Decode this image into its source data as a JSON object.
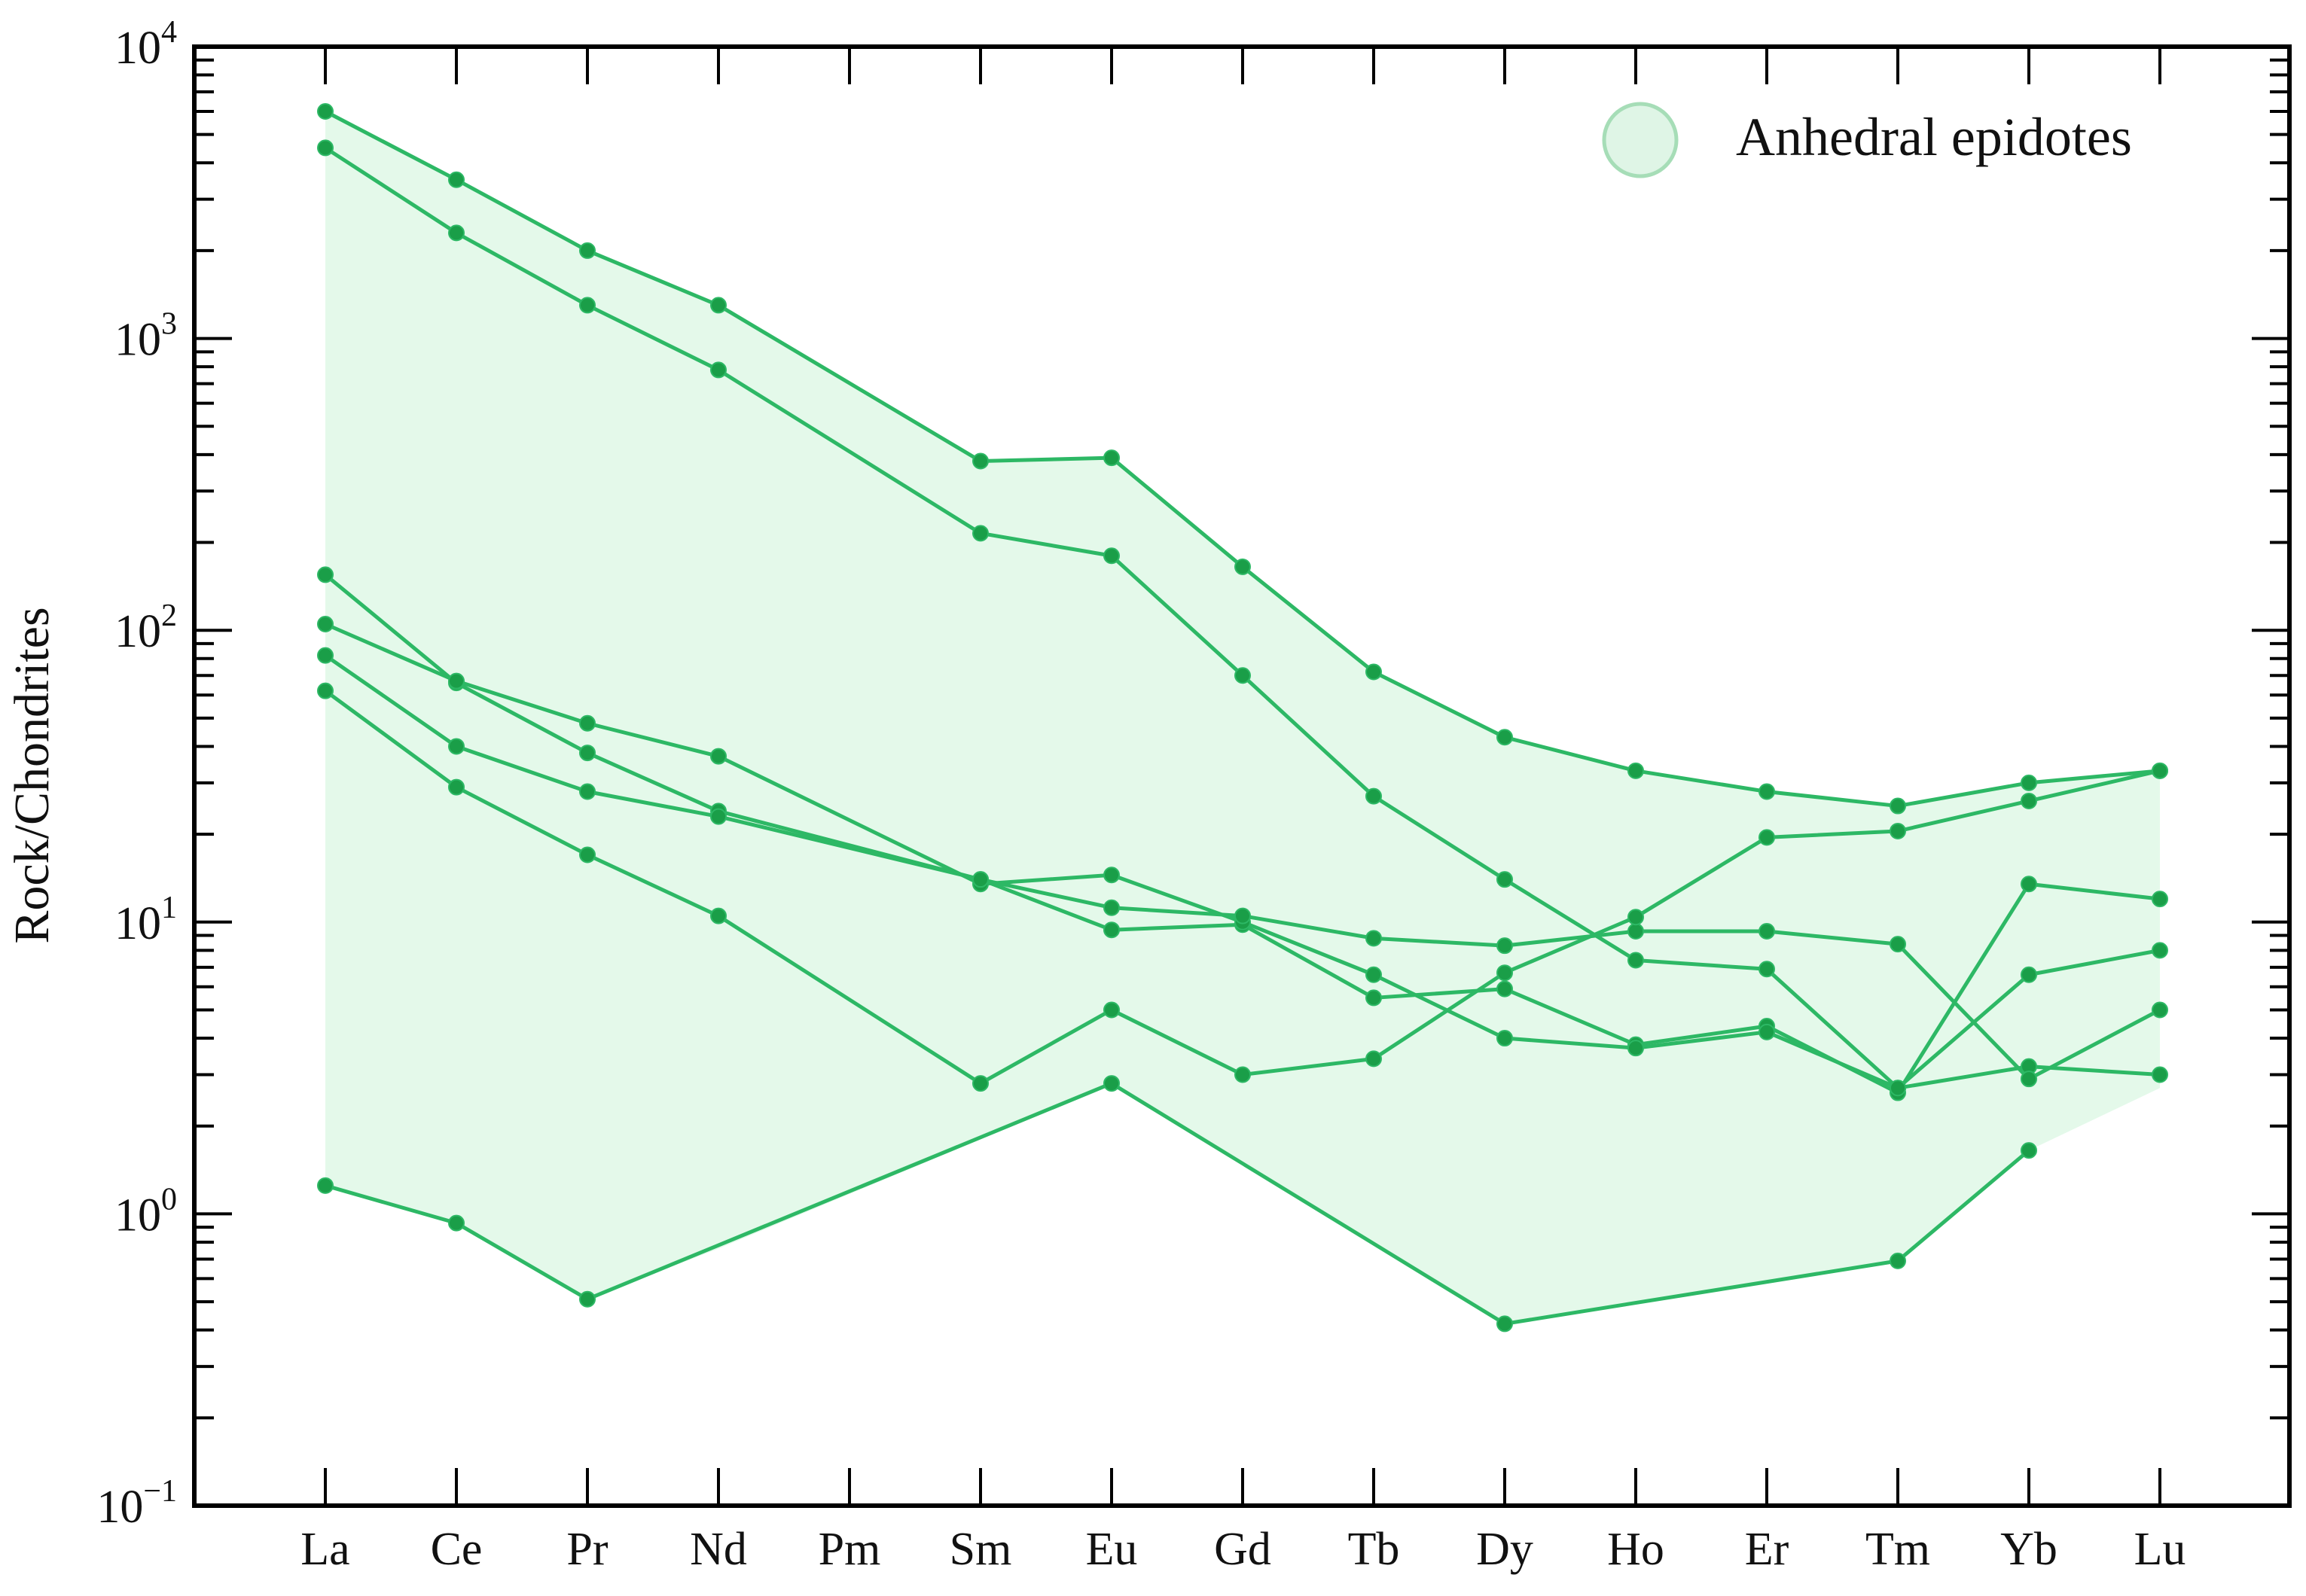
{
  "chart_data": {
    "type": "line",
    "ylabel": "Rock/Chondrites",
    "yscale": "log",
    "ylim": [
      0.1,
      10000
    ],
    "y_ticks": [
      {
        "base": "10",
        "exp": "4",
        "value": 10000
      },
      {
        "base": "10",
        "exp": "3",
        "value": 1000
      },
      {
        "base": "10",
        "exp": "2",
        "value": 100
      },
      {
        "base": "10",
        "exp": "1",
        "value": 10
      },
      {
        "base": "10",
        "exp": "0",
        "value": 1
      },
      {
        "base": "10",
        "exp": "−1",
        "value": 0.1
      }
    ],
    "categories": [
      "La",
      "Ce",
      "Pr",
      "Nd",
      "Pm",
      "Sm",
      "Eu",
      "Gd",
      "Tb",
      "Dy",
      "Ho",
      "Er",
      "Tm",
      "Yb",
      "Lu"
    ],
    "legend": {
      "label": "Anhedral epidotes",
      "placement": "top-right"
    },
    "colors": {
      "line": "#2db865",
      "marker": "#1a9e48",
      "fill": "#e4f9ea",
      "legend_fill": "#dff5e6",
      "legend_stroke": "#a6ddb7"
    },
    "series": [
      {
        "values": [
          6000,
          3500,
          2000,
          1300,
          null,
          380,
          390,
          165,
          72,
          43,
          33,
          28,
          25,
          30,
          33
        ]
      },
      {
        "values": [
          4500,
          2300,
          1300,
          780,
          null,
          215,
          180,
          70,
          27,
          14,
          7.4,
          6.9,
          2.7,
          6.6,
          8.0
        ]
      },
      {
        "values": [
          155,
          66,
          38,
          24,
          null,
          14,
          9.4,
          9.8,
          5.5,
          5.9,
          3.8,
          4.4,
          2.6,
          13.5,
          12
        ]
      },
      {
        "values": [
          105,
          67,
          48,
          37,
          null,
          13.5,
          14.5,
          10,
          6.6,
          4.0,
          3.7,
          4.2,
          2.7,
          3.2,
          3.0
        ]
      },
      {
        "values": [
          82,
          40,
          28,
          23,
          null,
          14,
          11.2,
          10.5,
          8.8,
          8.3,
          9.3,
          9.3,
          8.4,
          2.9,
          5.0
        ]
      },
      {
        "values": [
          62,
          29,
          17,
          10.5,
          null,
          2.8,
          5.0,
          3.0,
          3.4,
          6.7,
          10.4,
          19.5,
          20.5,
          26,
          33
        ]
      },
      {
        "values": [
          1.25,
          0.93,
          0.51,
          null,
          null,
          null,
          2.8,
          null,
          null,
          0.42,
          null,
          null,
          0.69,
          1.65,
          null
        ]
      }
    ],
    "envelope": {
      "upper": [
        6000,
        3500,
        2000,
        1300,
        null,
        380,
        390,
        165,
        72,
        43,
        33,
        28,
        25,
        30,
        33
      ],
      "lower": [
        1.25,
        0.93,
        0.51,
        0.76,
        null,
        1.8,
        2.8,
        1.5,
        0.8,
        0.42,
        0.5,
        0.58,
        0.69,
        1.65,
        2.7
      ]
    }
  }
}
